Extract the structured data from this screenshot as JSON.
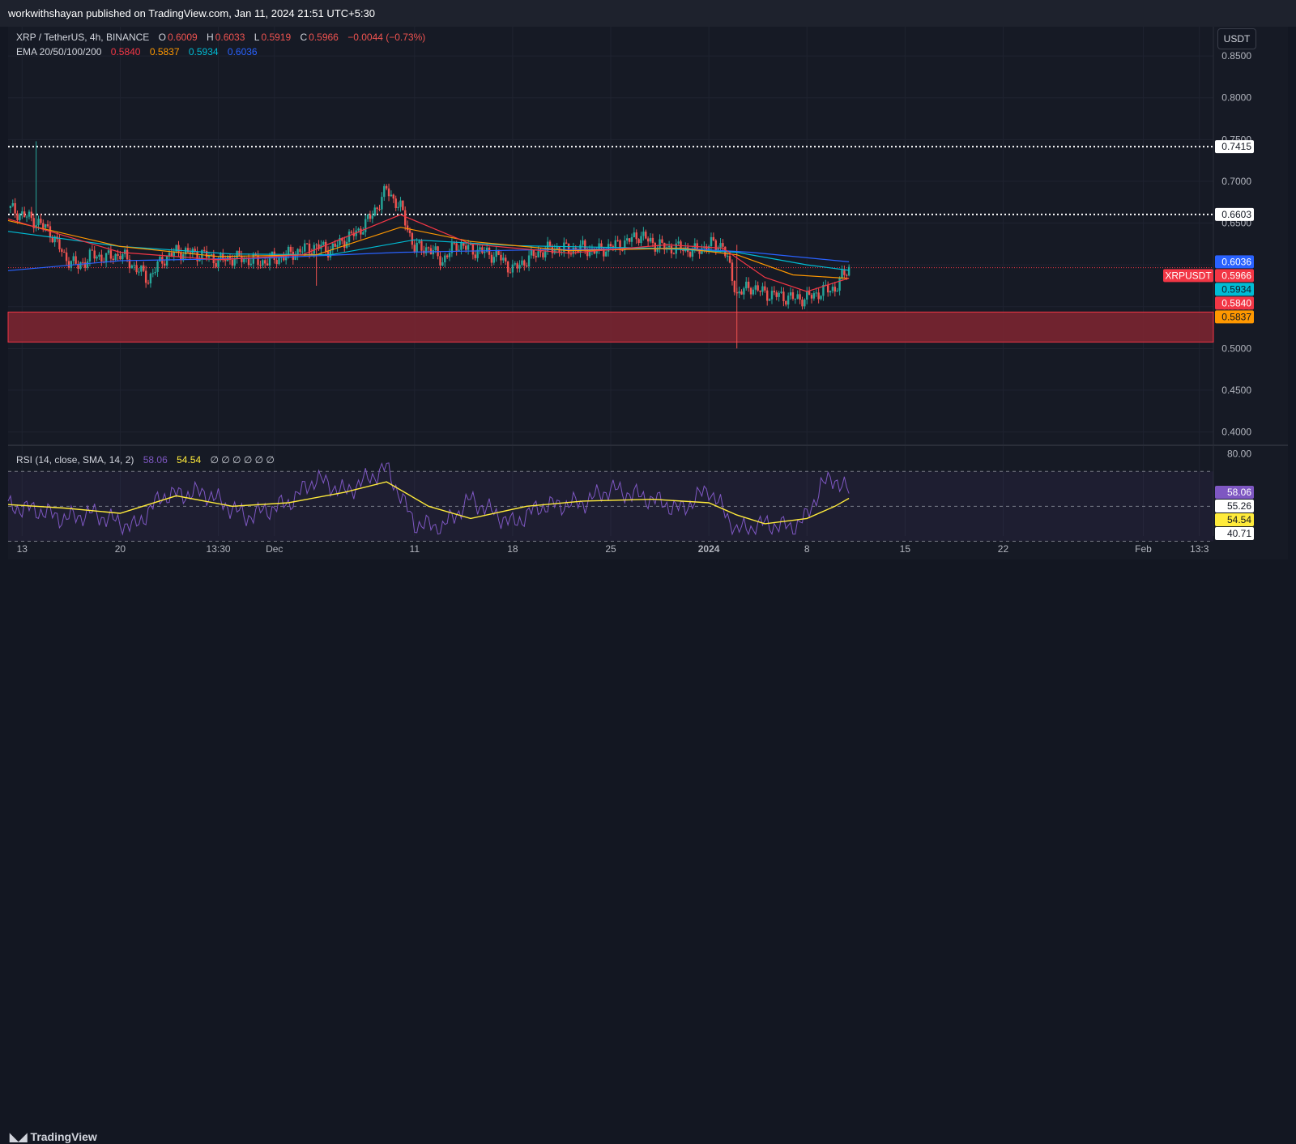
{
  "publisher": "workwithshayan published on TradingView.com, Jan 11, 2024 21:51 UTC+5:30",
  "unit_button": "USDT",
  "branding": "TradingView",
  "legend": {
    "symbol": "XRP / TetherUS, 4h, BINANCE",
    "o_label": "O",
    "o_value": "0.6009",
    "h_label": "H",
    "h_value": "0.6033",
    "l_label": "L",
    "l_value": "0.5919",
    "c_label": "C",
    "c_value": "0.5966",
    "change": "−0.0044 (−0.73%)",
    "ema_label": "EMA 20/50/100/200",
    "ema20": "0.5840",
    "ema50": "0.5837",
    "ema100": "0.5934",
    "ema200": "0.6036",
    "rsi_label": "RSI (14, close, SMA, 14, 2)",
    "rsi_value": "58.06",
    "rsi_sma": "54.54",
    "rsi_extra": "∅ ∅ ∅ ∅ ∅ ∅"
  },
  "colors": {
    "up": "#26a69a",
    "down": "#ef5350",
    "ema20": "#f23645",
    "ema50": "#ff9800",
    "ema100": "#00bcd4",
    "ema200": "#2962ff",
    "zone": "#7a2531",
    "rsi": "#7e57c2",
    "rsi_sma": "#ffeb3b"
  },
  "chart_data": [
    {
      "type": "candlestick",
      "title": "XRP / TetherUS, 4h, BINANCE",
      "y_ticks": [
        "0.8500",
        "0.8000",
        "0.7500",
        "0.7000",
        "0.6500",
        "0.6000",
        "0.5500",
        "0.5000",
        "0.4500",
        "0.4000"
      ],
      "y_tick_values": [
        0.85,
        0.8,
        0.75,
        0.7,
        0.65,
        0.6,
        0.55,
        0.5,
        0.45,
        0.4
      ],
      "ylim": [
        0.385,
        0.885
      ],
      "x_ticks": [
        "13",
        "20",
        "13:30",
        "Dec",
        "11",
        "18",
        "25",
        "2024",
        "8",
        "15",
        "22",
        "Feb",
        "13:3"
      ],
      "x_tick_dates": [
        "2023-11-13",
        "2023-11-20",
        "2023-11-27",
        "2023-12-01",
        "2023-12-11",
        "2023-12-18",
        "2023-12-25",
        "2024-01-01",
        "2024-01-08",
        "2024-01-15",
        "2024-01-22",
        "2024-02-01",
        "2024-02-05"
      ],
      "date_range": [
        "2023-11-12",
        "2024-02-06"
      ],
      "last_date": "2024-01-11",
      "horizontal_levels": [
        {
          "value": 0.7415,
          "label": "0.7415",
          "style": "dotted"
        },
        {
          "value": 0.6603,
          "label": "0.6603",
          "style": "dotted"
        }
      ],
      "zone": {
        "from": 0.5075,
        "to": 0.5435
      },
      "price_tags": [
        {
          "label": "XRPUSDT",
          "value": 0.5966,
          "text": "0.5966",
          "color": "#f23645"
        },
        {
          "label": "",
          "value": 0.6036,
          "text": "0.6036",
          "color": "#2962ff"
        },
        {
          "label": "",
          "value": 0.5934,
          "text": "0.5934",
          "color": "#00bcd4"
        },
        {
          "label": "",
          "value": 0.584,
          "text": "0.5840",
          "color": "#f23645"
        },
        {
          "label": "",
          "value": 0.5837,
          "text": "0.5837",
          "color": "#ff9800"
        }
      ],
      "close_path": [
        [
          "2023-11-12",
          0.668
        ],
        [
          "2023-11-13",
          0.66
        ],
        [
          "2023-11-14",
          0.652
        ],
        [
          "2023-11-15",
          0.64
        ],
        [
          "2023-11-16",
          0.61
        ],
        [
          "2023-11-17",
          0.598
        ],
        [
          "2023-11-18",
          0.612
        ],
        [
          "2023-11-19",
          0.608
        ],
        [
          "2023-11-20",
          0.613
        ],
        [
          "2023-11-21",
          0.598
        ],
        [
          "2023-11-22",
          0.583
        ],
        [
          "2023-11-23",
          0.606
        ],
        [
          "2023-11-24",
          0.616
        ],
        [
          "2023-11-25",
          0.614
        ],
        [
          "2023-11-26",
          0.612
        ],
        [
          "2023-11-27",
          0.605
        ],
        [
          "2023-11-28",
          0.608
        ],
        [
          "2023-11-29",
          0.607
        ],
        [
          "2023-11-30",
          0.603
        ],
        [
          "2023-12-01",
          0.607
        ],
        [
          "2023-12-02",
          0.612
        ],
        [
          "2023-12-03",
          0.618
        ],
        [
          "2023-12-04",
          0.622
        ],
        [
          "2023-12-05",
          0.618
        ],
        [
          "2023-12-06",
          0.63
        ],
        [
          "2023-12-07",
          0.64
        ],
        [
          "2023-12-08",
          0.66
        ],
        [
          "2023-12-09",
          0.69
        ],
        [
          "2023-12-10",
          0.668
        ],
        [
          "2023-12-11",
          0.62
        ],
        [
          "2023-12-12",
          0.62
        ],
        [
          "2023-12-13",
          0.605
        ],
        [
          "2023-12-14",
          0.625
        ],
        [
          "2023-12-15",
          0.618
        ],
        [
          "2023-12-16",
          0.615
        ],
        [
          "2023-12-17",
          0.61
        ],
        [
          "2023-12-18",
          0.594
        ],
        [
          "2023-12-19",
          0.606
        ],
        [
          "2023-12-20",
          0.616
        ],
        [
          "2023-12-21",
          0.62
        ],
        [
          "2023-12-22",
          0.618
        ],
        [
          "2023-12-23",
          0.62
        ],
        [
          "2023-12-24",
          0.616
        ],
        [
          "2023-12-25",
          0.622
        ],
        [
          "2023-12-26",
          0.626
        ],
        [
          "2023-12-27",
          0.636
        ],
        [
          "2023-12-28",
          0.626
        ],
        [
          "2023-12-29",
          0.62
        ],
        [
          "2023-12-30",
          0.62
        ],
        [
          "2023-12-31",
          0.616
        ],
        [
          "2024-01-01",
          0.624
        ],
        [
          "2024-01-02",
          0.624
        ],
        [
          "2024-01-03",
          0.565
        ],
        [
          "2024-01-04",
          0.574
        ],
        [
          "2024-01-05",
          0.566
        ],
        [
          "2024-01-06",
          0.563
        ],
        [
          "2024-01-07",
          0.56
        ],
        [
          "2024-01-08",
          0.56
        ],
        [
          "2024-01-09",
          0.568
        ],
        [
          "2024-01-10",
          0.572
        ],
        [
          "2024-01-11",
          0.5966
        ]
      ],
      "ema_paths": {
        "ema20": [
          [
            "2023-11-12",
            0.655
          ],
          [
            "2023-11-20",
            0.615
          ],
          [
            "2023-11-27",
            0.606
          ],
          [
            "2023-12-03",
            0.612
          ],
          [
            "2023-12-10",
            0.66
          ],
          [
            "2023-12-15",
            0.625
          ],
          [
            "2023-12-22",
            0.614
          ],
          [
            "2023-12-29",
            0.624
          ],
          [
            "2024-01-02",
            0.62
          ],
          [
            "2024-01-05",
            0.585
          ],
          [
            "2024-01-08",
            0.568
          ],
          [
            "2024-01-11",
            0.584
          ]
        ],
        "ema50": [
          [
            "2023-11-12",
            0.653
          ],
          [
            "2023-11-20",
            0.622
          ],
          [
            "2023-11-27",
            0.61
          ],
          [
            "2023-12-04",
            0.612
          ],
          [
            "2023-12-10",
            0.645
          ],
          [
            "2023-12-15",
            0.628
          ],
          [
            "2023-12-22",
            0.617
          ],
          [
            "2023-12-30",
            0.62
          ],
          [
            "2024-01-03",
            0.612
          ],
          [
            "2024-01-07",
            0.588
          ],
          [
            "2024-01-11",
            0.5837
          ]
        ],
        "ema100": [
          [
            "2023-11-12",
            0.64
          ],
          [
            "2023-11-20",
            0.622
          ],
          [
            "2023-11-28",
            0.613
          ],
          [
            "2023-12-05",
            0.612
          ],
          [
            "2023-12-11",
            0.63
          ],
          [
            "2023-12-18",
            0.623
          ],
          [
            "2023-12-28",
            0.62
          ],
          [
            "2024-01-03",
            0.615
          ],
          [
            "2024-01-08",
            0.6
          ],
          [
            "2024-01-11",
            0.5934
          ]
        ],
        "ema200": [
          [
            "2023-11-12",
            0.593
          ],
          [
            "2023-11-20",
            0.605
          ],
          [
            "2023-11-30",
            0.608
          ],
          [
            "2023-12-10",
            0.615
          ],
          [
            "2023-12-20",
            0.618
          ],
          [
            "2023-12-30",
            0.62
          ],
          [
            "2024-01-04",
            0.615
          ],
          [
            "2024-01-11",
            0.6036
          ]
        ]
      }
    },
    {
      "type": "line",
      "title": "RSI (14, close, SMA, 14, 2)",
      "y_ticks": [
        "80.00",
        "40.71"
      ],
      "y_tick_values": [
        80,
        40.71
      ],
      "ylim": [
        33,
        84
      ],
      "band": [
        70,
        30
      ],
      "levels": [
        70,
        50,
        30
      ],
      "price_tags": [
        {
          "value": 58.06,
          "text": "58.06",
          "color": "#7e57c2"
        },
        {
          "value": 55.26,
          "text": "55.26",
          "color": "#ffffff"
        },
        {
          "value": 54.54,
          "text": "54.54",
          "color": "#ffeb3b"
        },
        {
          "value": 40.71,
          "text": "40.71",
          "color": "#ffffff"
        }
      ],
      "series": [
        {
          "name": "",
          "color": "#7e57c2",
          "values": [
            [
              "2023-11-12",
              50
            ],
            [
              "2023-11-14",
              48
            ],
            [
              "2023-11-16",
              43
            ],
            [
              "2023-11-18",
              46
            ],
            [
              "2023-11-21",
              38
            ],
            [
              "2023-11-23",
              56
            ],
            [
              "2023-11-26",
              58
            ],
            [
              "2023-11-29",
              44
            ],
            [
              "2023-12-02",
              52
            ],
            [
              "2023-12-04",
              66
            ],
            [
              "2023-12-06",
              58
            ],
            [
              "2023-12-09",
              72
            ],
            [
              "2023-12-11",
              40
            ],
            [
              "2023-12-13",
              38
            ],
            [
              "2023-12-15",
              54
            ],
            [
              "2023-12-18",
              40
            ],
            [
              "2023-12-20",
              50
            ],
            [
              "2023-12-23",
              52
            ],
            [
              "2023-12-25",
              60
            ],
            [
              "2023-12-28",
              54
            ],
            [
              "2023-12-30",
              48
            ],
            [
              "2024-01-01",
              60
            ],
            [
              "2024-01-03",
              36
            ],
            [
              "2024-01-05",
              40
            ],
            [
              "2024-01-07",
              38
            ],
            [
              "2024-01-08",
              44
            ],
            [
              "2024-01-09",
              62
            ],
            [
              "2024-01-10",
              66
            ],
            [
              "2024-01-11",
              58.06
            ]
          ]
        },
        {
          "name": "",
          "color": "#ffeb3b",
          "values": [
            [
              "2023-11-12",
              51
            ],
            [
              "2023-11-16",
              49
            ],
            [
              "2023-11-20",
              46
            ],
            [
              "2023-11-24",
              56
            ],
            [
              "2023-11-28",
              50
            ],
            [
              "2023-12-02",
              52
            ],
            [
              "2023-12-06",
              58
            ],
            [
              "2023-12-09",
              64
            ],
            [
              "2023-12-12",
              50
            ],
            [
              "2023-12-15",
              43
            ],
            [
              "2023-12-19",
              50
            ],
            [
              "2023-12-23",
              53
            ],
            [
              "2023-12-28",
              54
            ],
            [
              "2024-01-01",
              52
            ],
            [
              "2024-01-03",
              45
            ],
            [
              "2024-01-05",
              40
            ],
            [
              "2024-01-08",
              43
            ],
            [
              "2024-01-10",
              50
            ],
            [
              "2024-01-11",
              54.54
            ]
          ]
        }
      ]
    }
  ]
}
